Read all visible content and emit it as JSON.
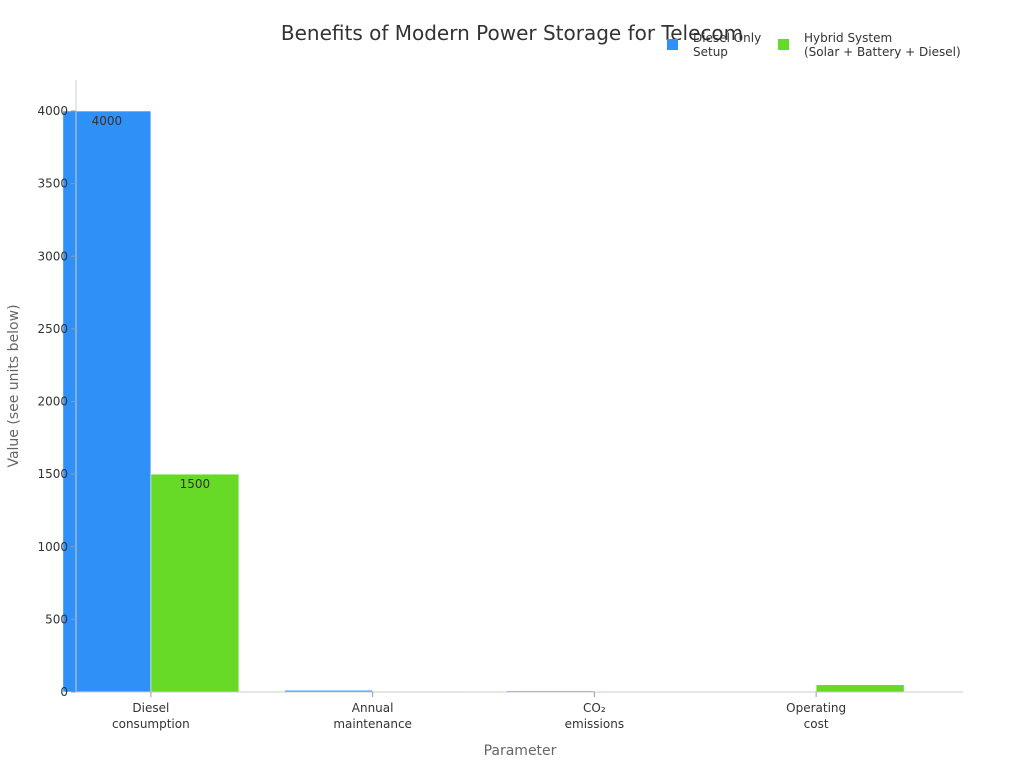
{
  "chart_data": {
    "type": "bar",
    "title": "Benefits of Modern Power Storage for Telecom",
    "xlabel": "Parameter",
    "ylabel": "Value (see units below)",
    "categories": [
      [
        "Diesel",
        "consumption"
      ],
      [
        "Annual",
        "maintenance"
      ],
      [
        "CO₂",
        "emissions"
      ],
      [
        "Operating",
        "cost"
      ]
    ],
    "series": [
      {
        "name": [
          "Diesel Only",
          "Setup"
        ],
        "color": "#2f90f8",
        "values": [
          4000,
          12,
          8,
          0
        ],
        "labels": [
          "4000",
          "",
          "",
          ""
        ]
      },
      {
        "name": [
          "Hybrid System",
          "(Solar + Battery + Diesel)"
        ],
        "color": "#66da26",
        "values": [
          1500,
          4,
          3,
          50
        ],
        "labels": [
          "1500",
          "",
          "",
          ""
        ]
      }
    ],
    "ylim": [
      0,
      4200
    ],
    "yticks": [
      0,
      500,
      1000,
      1500,
      2000,
      2500,
      3000,
      3500,
      4000
    ],
    "grid": false,
    "legend_position": "top-right"
  }
}
